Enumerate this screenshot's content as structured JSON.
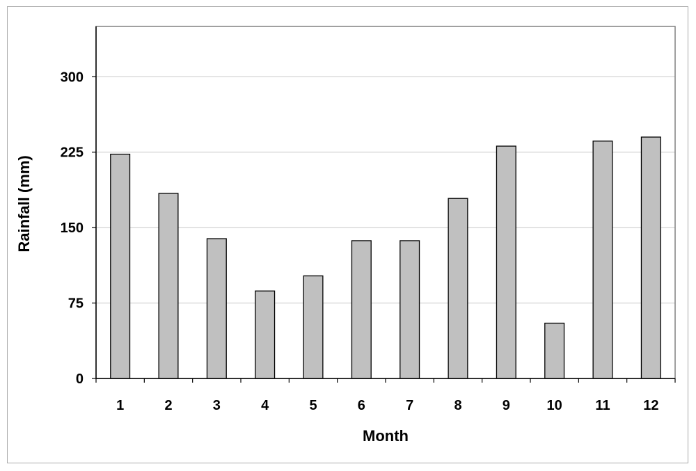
{
  "chart_data": {
    "type": "bar",
    "title": "",
    "xlabel": "Month",
    "ylabel": "Rainfall (mm)",
    "categories": [
      "1",
      "2",
      "3",
      "4",
      "5",
      "6",
      "7",
      "8",
      "9",
      "10",
      "11",
      "12"
    ],
    "values": [
      223,
      184,
      139,
      87,
      102,
      137,
      137,
      179,
      231,
      55,
      236,
      240
    ],
    "ylim": [
      0,
      350
    ],
    "yticks": [
      "0",
      "75",
      "150",
      "225",
      "300"
    ],
    "ytick_values": [
      0,
      75,
      150,
      225,
      300
    ],
    "grid": true,
    "legend": "none",
    "colors": {
      "bar_fill": "#c0c0c0",
      "bar_stroke": "#000000",
      "gridline": "#c8c8c8",
      "plot_border": "#808080",
      "frame_border": "#a9a9a9"
    }
  }
}
